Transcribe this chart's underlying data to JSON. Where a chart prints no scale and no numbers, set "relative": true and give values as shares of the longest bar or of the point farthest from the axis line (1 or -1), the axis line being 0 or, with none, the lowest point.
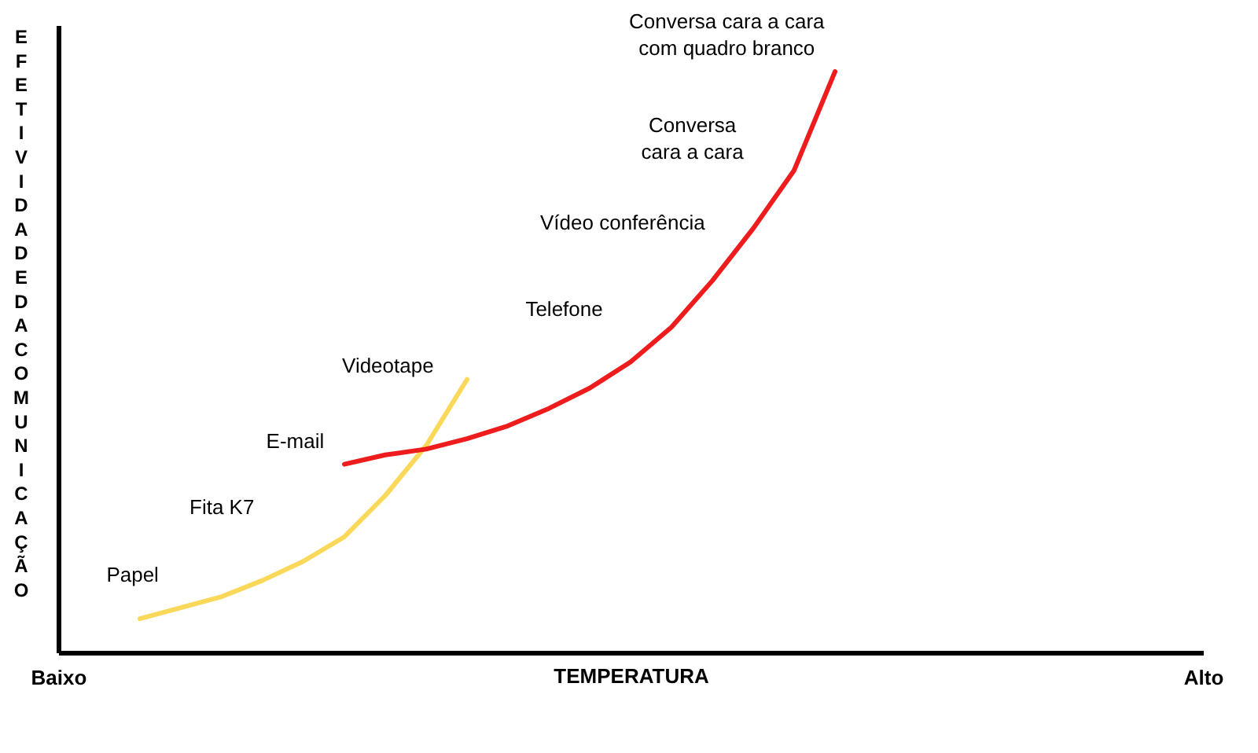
{
  "chart_data": {
    "type": "line",
    "relative": true,
    "xlabel": "TEMPERATURA",
    "ylabel": "EFETIVIDADE DA COMUNICAÇÃO",
    "categories": [
      "Baixo",
      null,
      null,
      null,
      null,
      null,
      null,
      null,
      null,
      null,
      null,
      null,
      null,
      null,
      null,
      null,
      null,
      null,
      null,
      null,
      null,
      null,
      null,
      null,
      null,
      null,
      null,
      null,
      "Alto"
    ],
    "series": [
      {
        "color": "#f9d85a",
        "values": [
          null,
          null,
          0.058,
          0.077,
          0.096,
          0.124,
          0.157,
          0.199,
          0.27,
          0.356,
          0.47,
          null,
          null,
          null,
          null,
          null,
          null,
          null,
          null,
          null,
          null,
          null,
          null,
          null,
          null,
          null,
          null,
          null,
          null
        ]
      },
      {
        "color": "#ee1c1c",
        "values": [
          null,
          null,
          null,
          null,
          null,
          null,
          null,
          0.324,
          0.34,
          0.35,
          0.368,
          0.39,
          0.42,
          0.455,
          0.5,
          0.56,
          0.64,
          0.73,
          0.83,
          1,
          null,
          null,
          null,
          null,
          null,
          null,
          null,
          null,
          null
        ]
      }
    ],
    "annotations": [
      "Papel",
      "Fita K7",
      "E-mail",
      "Videotape",
      "Telefone",
      "Vídeo conferência",
      "Conversa\ncara a cara",
      "Conversa cara a cara\ncom quadro branco"
    ],
    "grid": false,
    "legend": false,
    "marker": "none",
    "line_style": "solid"
  }
}
